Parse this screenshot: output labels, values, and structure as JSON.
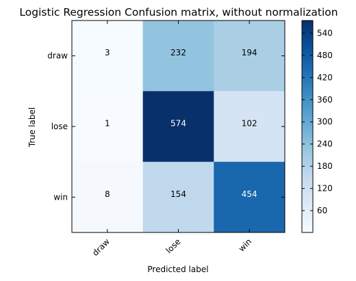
{
  "chart_data": {
    "type": "heatmap",
    "title": "Logistic Regression Confusion matrix, without normalization",
    "xlabel": "Predicted label",
    "ylabel": "True label",
    "x_categories": [
      "draw",
      "lose",
      "win"
    ],
    "y_categories": [
      "draw",
      "lose",
      "win"
    ],
    "values": [
      [
        3,
        232,
        194
      ],
      [
        1,
        574,
        102
      ],
      [
        8,
        154,
        454
      ]
    ],
    "colormap": "Blues",
    "vmin": 1,
    "vmax": 574,
    "colorbar_ticks": [
      60,
      120,
      180,
      240,
      300,
      360,
      420,
      480,
      540
    ],
    "colorbar_tick_labels": [
      "60",
      "120",
      "180",
      "240",
      "300",
      "360",
      "420",
      "480",
      "540"
    ],
    "colors": {
      "low": "#f7fbff",
      "high": "#08306b",
      "text_on_light": "#000000"
    }
  }
}
